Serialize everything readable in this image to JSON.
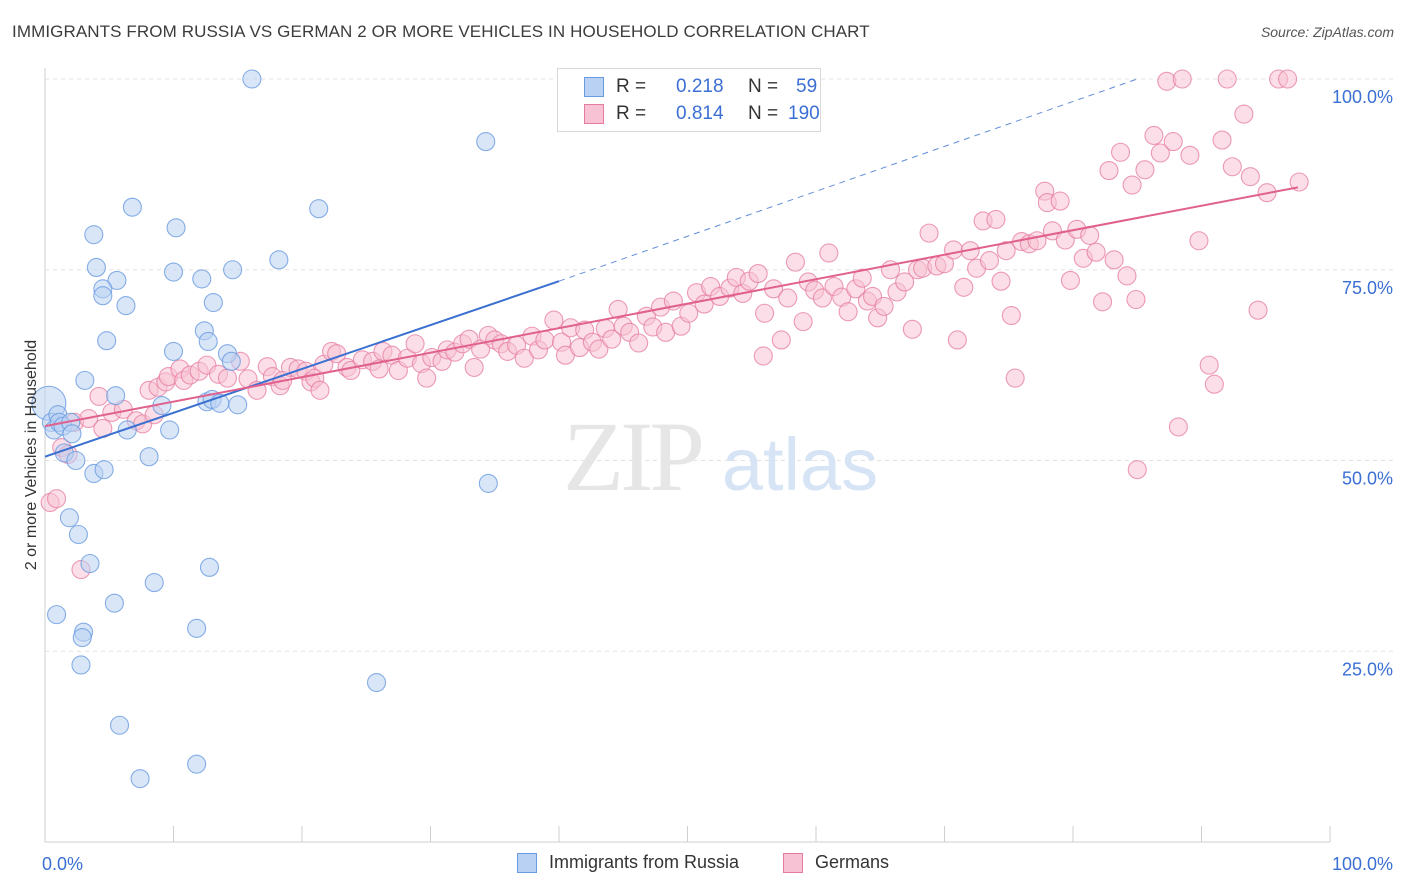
{
  "title": "IMMIGRANTS FROM RUSSIA VS GERMAN 2 OR MORE VEHICLES IN HOUSEHOLD CORRELATION CHART",
  "source": "Source: ZipAtlas.com",
  "watermark": {
    "zip": "ZIP",
    "atlas": "atlas"
  },
  "colors": {
    "blue": "#6a9be0",
    "blue_fill": "#b9d2f3",
    "blue_line": "#3a70d0",
    "pink": "#e67ba0",
    "pink_fill": "#f7c3d4",
    "pink_line": "#e0608e",
    "accent_text": "#3b6fd4"
  },
  "legend": {
    "rows": [
      {
        "r_label": "R =",
        "r_value": "0.218",
        "n_label": "N =",
        "n_value": "59"
      },
      {
        "r_label": "R =",
        "r_value": "0.814",
        "n_label": "N =",
        "n_value": "190"
      }
    ]
  },
  "bottom_legend": [
    "Immigrants from Russia",
    "Germans"
  ],
  "chart_data": {
    "type": "scatter",
    "xlabel": "",
    "ylabel": "2 or more Vehicles in Household",
    "xlim": [
      0,
      100
    ],
    "ylim": [
      0,
      103
    ],
    "x_tick_labels": [
      {
        "value": 0,
        "label": "0.0%"
      },
      {
        "value": 100,
        "label": "100.0%"
      }
    ],
    "y_tick_labels": [
      {
        "value": 25,
        "label": "25.0%"
      },
      {
        "value": 50,
        "label": "50.0%"
      },
      {
        "value": 75,
        "label": "75.0%"
      },
      {
        "value": 100,
        "label": "100.0%"
      }
    ],
    "grid": true,
    "series": [
      {
        "name": "Immigrants from Russia",
        "r": 0.218,
        "n": 59,
        "trend": {
          "x": [
            0,
            40
          ],
          "y": [
            50.5,
            73.5
          ],
          "dashed_to": [
            85,
            100
          ]
        },
        "points": [
          [
            0.3,
            57.5
          ],
          [
            0.5,
            55
          ],
          [
            0.7,
            54
          ],
          [
            1,
            56
          ],
          [
            1.1,
            55
          ],
          [
            1.4,
            54.5
          ],
          [
            2,
            55
          ],
          [
            2.1,
            53.5
          ],
          [
            1.5,
            51
          ],
          [
            2.4,
            50
          ],
          [
            1.9,
            42.5
          ],
          [
            2.6,
            40.3
          ],
          [
            0.9,
            29.8
          ],
          [
            3,
            27.5
          ],
          [
            2.9,
            26.8
          ],
          [
            2.8,
            23.2
          ],
          [
            3.5,
            36.5
          ],
          [
            5.4,
            31.3
          ],
          [
            5.8,
            15.3
          ],
          [
            7.4,
            8.3
          ],
          [
            8.5,
            34
          ],
          [
            11.8,
            28
          ],
          [
            12.8,
            36
          ],
          [
            11.8,
            10.2
          ],
          [
            25.8,
            20.9
          ],
          [
            3.1,
            60.5
          ],
          [
            3.8,
            48.3
          ],
          [
            4.6,
            48.8
          ],
          [
            5.5,
            58.5
          ],
          [
            6.4,
            54
          ],
          [
            8.1,
            50.5
          ],
          [
            9.1,
            57.2
          ],
          [
            9.7,
            54
          ],
          [
            10,
            64.3
          ],
          [
            12.6,
            57.7
          ],
          [
            13,
            58
          ],
          [
            13.6,
            57.5
          ],
          [
            14.2,
            64
          ],
          [
            14.5,
            63
          ],
          [
            15,
            57.3
          ],
          [
            12.4,
            67
          ],
          [
            12.7,
            65.6
          ],
          [
            13.1,
            70.7
          ],
          [
            14.6,
            75
          ],
          [
            12.2,
            73.8
          ],
          [
            10,
            74.7
          ],
          [
            4,
            75.3
          ],
          [
            5.6,
            73.6
          ],
          [
            4.5,
            72.5
          ],
          [
            4.5,
            71.6
          ],
          [
            6.3,
            70.3
          ],
          [
            4.8,
            65.7
          ],
          [
            3.8,
            79.6
          ],
          [
            6.8,
            83.2
          ],
          [
            10.2,
            80.5
          ],
          [
            18.2,
            76.3
          ],
          [
            21.3,
            83
          ],
          [
            16.1,
            100
          ],
          [
            34.3,
            91.8
          ],
          [
            34.5,
            47
          ]
        ]
      },
      {
        "name": "Germans",
        "r": 0.814,
        "n": 190,
        "trend": {
          "x": [
            0,
            97.5
          ],
          "y": [
            54.5,
            85.8
          ]
        },
        "points": [
          [
            0.4,
            44.5
          ],
          [
            0.9,
            45
          ],
          [
            2.8,
            35.7
          ],
          [
            1.3,
            51.7
          ],
          [
            1.8,
            50.8
          ],
          [
            2.3,
            55
          ],
          [
            3.4,
            55.5
          ],
          [
            4.5,
            54.2
          ],
          [
            4.2,
            58.4
          ],
          [
            5.2,
            56.3
          ],
          [
            6.1,
            56.7
          ],
          [
            7.1,
            55.2
          ],
          [
            7.6,
            54.8
          ],
          [
            8.1,
            59.2
          ],
          [
            8.5,
            56
          ],
          [
            8.8,
            59.6
          ],
          [
            9.4,
            60.3
          ],
          [
            9.6,
            61
          ],
          [
            10.5,
            62
          ],
          [
            10.8,
            60.5
          ],
          [
            11.3,
            61.2
          ],
          [
            12,
            61.7
          ],
          [
            12.6,
            62.5
          ],
          [
            13.5,
            61.3
          ],
          [
            14.2,
            60.8
          ],
          [
            15.2,
            63
          ],
          [
            15.8,
            60.7
          ],
          [
            16.5,
            59.2
          ],
          [
            17.3,
            62.3
          ],
          [
            17.7,
            61
          ],
          [
            18.3,
            59.8
          ],
          [
            18.5,
            60.5
          ],
          [
            19.1,
            62.2
          ],
          [
            19.7,
            62
          ],
          [
            20.3,
            61.7
          ],
          [
            20.7,
            60.3
          ],
          [
            21,
            60.8
          ],
          [
            21.4,
            59.2
          ],
          [
            21.7,
            62.6
          ],
          [
            22.3,
            64.3
          ],
          [
            22.7,
            64
          ],
          [
            23.5,
            62.2
          ],
          [
            23.8,
            61.8
          ],
          [
            24.7,
            63.2
          ],
          [
            25.5,
            63
          ],
          [
            26,
            62
          ],
          [
            26.3,
            64.3
          ],
          [
            27,
            63.8
          ],
          [
            27.5,
            61.8
          ],
          [
            28.2,
            63.4
          ],
          [
            28.8,
            65.3
          ],
          [
            29.3,
            62.7
          ],
          [
            29.7,
            60.8
          ],
          [
            30.1,
            63.5
          ],
          [
            30.9,
            63
          ],
          [
            31.3,
            64.5
          ],
          [
            31.9,
            64.2
          ],
          [
            32.5,
            65.3
          ],
          [
            33,
            65.9
          ],
          [
            33.4,
            62.2
          ],
          [
            33.9,
            64.6
          ],
          [
            34.5,
            66.4
          ],
          [
            35,
            65.8
          ],
          [
            35.5,
            65.3
          ],
          [
            36,
            64.3
          ],
          [
            36.7,
            65.1
          ],
          [
            37.3,
            63.4
          ],
          [
            37.9,
            66.3
          ],
          [
            38.4,
            64.5
          ],
          [
            38.9,
            65.8
          ],
          [
            39.6,
            68.4
          ],
          [
            40.2,
            65.5
          ],
          [
            40.5,
            63.8
          ],
          [
            40.9,
            67.4
          ],
          [
            41.6,
            64.8
          ],
          [
            42,
            67.1
          ],
          [
            42.6,
            65.5
          ],
          [
            43.1,
            64.6
          ],
          [
            43.6,
            67.3
          ],
          [
            44.1,
            65.9
          ],
          [
            44.6,
            69.8
          ],
          [
            45,
            67.6
          ],
          [
            45.5,
            66.8
          ],
          [
            46.2,
            65.4
          ],
          [
            46.8,
            68.9
          ],
          [
            47.3,
            67.5
          ],
          [
            47.9,
            70.1
          ],
          [
            48.3,
            66.8
          ],
          [
            48.9,
            70.9
          ],
          [
            49.5,
            67.6
          ],
          [
            50.1,
            69.3
          ],
          [
            50.7,
            72
          ],
          [
            51.3,
            70.5
          ],
          [
            51.8,
            72.8
          ],
          [
            52.5,
            71.5
          ],
          [
            53.3,
            72.6
          ],
          [
            53.8,
            74
          ],
          [
            54.3,
            71.9
          ],
          [
            54.8,
            73.5
          ],
          [
            55.5,
            74.5
          ],
          [
            55.9,
            63.7
          ],
          [
            56,
            69.3
          ],
          [
            56.7,
            72.5
          ],
          [
            57.3,
            65.8
          ],
          [
            57.8,
            71.3
          ],
          [
            58.4,
            76
          ],
          [
            59,
            68.2
          ],
          [
            59.4,
            73.4
          ],
          [
            59.9,
            72.3
          ],
          [
            60.5,
            71.3
          ],
          [
            61,
            77.2
          ],
          [
            61.4,
            72.8
          ],
          [
            62,
            71.4
          ],
          [
            62.5,
            69.5
          ],
          [
            63.1,
            72.5
          ],
          [
            63.6,
            73.9
          ],
          [
            64,
            70.9
          ],
          [
            64.4,
            71.5
          ],
          [
            64.8,
            68.7
          ],
          [
            65.3,
            70.2
          ],
          [
            65.8,
            75
          ],
          [
            66.3,
            72.1
          ],
          [
            66.9,
            73.4
          ],
          [
            67.5,
            67.2
          ],
          [
            67.9,
            75
          ],
          [
            68.3,
            75.2
          ],
          [
            68.8,
            79.8
          ],
          [
            69.4,
            75.5
          ],
          [
            70,
            75.8
          ],
          [
            70.7,
            77.6
          ],
          [
            71,
            65.8
          ],
          [
            71.5,
            72.7
          ],
          [
            72,
            77.5
          ],
          [
            72.5,
            75.2
          ],
          [
            73,
            81.4
          ],
          [
            73.5,
            76.2
          ],
          [
            74,
            81.6
          ],
          [
            74.4,
            73.5
          ],
          [
            74.8,
            77.5
          ],
          [
            75.2,
            69
          ],
          [
            75.5,
            60.8
          ],
          [
            76,
            78.7
          ],
          [
            76.6,
            78.4
          ],
          [
            77.2,
            78.8
          ],
          [
            77.8,
            85.3
          ],
          [
            78,
            83.8
          ],
          [
            78.4,
            80.1
          ],
          [
            79,
            84
          ],
          [
            79.4,
            78.9
          ],
          [
            79.8,
            73.6
          ],
          [
            80.3,
            80.3
          ],
          [
            80.8,
            76.5
          ],
          [
            81.3,
            79.5
          ],
          [
            81.8,
            77.3
          ],
          [
            82.3,
            70.8
          ],
          [
            82.8,
            88
          ],
          [
            83.2,
            76.3
          ],
          [
            83.7,
            90.4
          ],
          [
            84.2,
            74.2
          ],
          [
            84.6,
            86.1
          ],
          [
            84.9,
            71.1
          ],
          [
            85,
            48.8
          ],
          [
            85.6,
            88.1
          ],
          [
            86.3,
            92.6
          ],
          [
            86.8,
            90.3
          ],
          [
            87.3,
            99.7
          ],
          [
            87.8,
            91.8
          ],
          [
            88.2,
            54.4
          ],
          [
            88.5,
            100
          ],
          [
            89.1,
            90
          ],
          [
            89.8,
            78.8
          ],
          [
            90.6,
            62.5
          ],
          [
            91,
            60
          ],
          [
            91.6,
            92
          ],
          [
            92,
            100
          ],
          [
            92.4,
            88.5
          ],
          [
            93.3,
            95.4
          ],
          [
            93.8,
            87.2
          ],
          [
            94.4,
            69.7
          ],
          [
            95.1,
            85.1
          ],
          [
            96,
            100
          ],
          [
            96.7,
            100
          ],
          [
            97.6,
            86.5
          ]
        ]
      }
    ]
  }
}
